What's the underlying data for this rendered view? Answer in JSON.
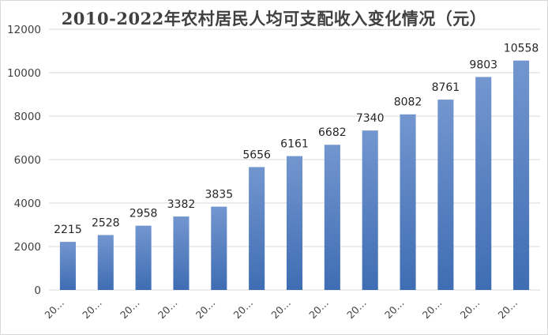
{
  "chart_data": {
    "type": "bar",
    "title": "2010-2022年农村居民人均可支配收入变化情况（元）",
    "categories": [
      "20…",
      "20…",
      "20…",
      "20…",
      "20…",
      "20…",
      "20…",
      "20…",
      "20…",
      "20…",
      "20…",
      "20…",
      "20…"
    ],
    "values": [
      2215,
      2528,
      2958,
      3382,
      3835,
      5656,
      6161,
      6682,
      7340,
      8082,
      8761,
      9803,
      10558
    ],
    "ylim": [
      0,
      12000
    ],
    "yticks": [
      "0",
      "2000",
      "4000",
      "6000",
      "8000",
      "10000",
      "12000"
    ],
    "grid": true,
    "legend": "none",
    "bar_color_top": "#7396cf",
    "bar_color_bottom": "#3f6db3",
    "grid_color": "#d9d9d9"
  }
}
